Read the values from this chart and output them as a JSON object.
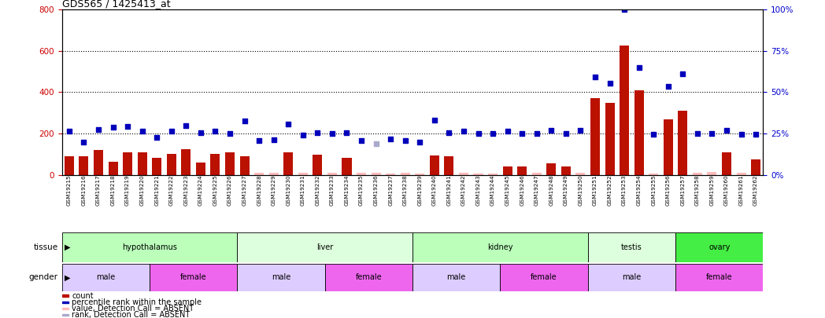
{
  "title": "GDS565 / 1425413_at",
  "samples": [
    "GSM19215",
    "GSM19216",
    "GSM19217",
    "GSM19218",
    "GSM19219",
    "GSM19220",
    "GSM19221",
    "GSM19222",
    "GSM19223",
    "GSM19224",
    "GSM19225",
    "GSM19226",
    "GSM19227",
    "GSM19228",
    "GSM19229",
    "GSM19230",
    "GSM19231",
    "GSM19232",
    "GSM19233",
    "GSM19234",
    "GSM19235",
    "GSM19236",
    "GSM19237",
    "GSM19238",
    "GSM19239",
    "GSM19240",
    "GSM19241",
    "GSM19242",
    "GSM19243",
    "GSM19244",
    "GSM19245",
    "GSM19246",
    "GSM19247",
    "GSM19248",
    "GSM19249",
    "GSM19250",
    "GSM19251",
    "GSM19252",
    "GSM19253",
    "GSM19254",
    "GSM19255",
    "GSM19256",
    "GSM19257",
    "GSM19258",
    "GSM19259",
    "GSM19260",
    "GSM19261",
    "GSM19262"
  ],
  "count": [
    90,
    92,
    120,
    62,
    110,
    110,
    82,
    100,
    125,
    60,
    100,
    110,
    92,
    12,
    10,
    110,
    10,
    98,
    12,
    82,
    12,
    10,
    8,
    10,
    8,
    95,
    90,
    10,
    8,
    8,
    40,
    42,
    10,
    55,
    40,
    10,
    370,
    350,
    625,
    410,
    8,
    270,
    310,
    10,
    15,
    110,
    12,
    75
  ],
  "count_absent": [
    false,
    false,
    false,
    false,
    false,
    false,
    false,
    false,
    false,
    false,
    false,
    false,
    false,
    true,
    true,
    false,
    true,
    false,
    true,
    false,
    true,
    true,
    true,
    true,
    true,
    false,
    false,
    true,
    true,
    true,
    false,
    false,
    true,
    false,
    false,
    true,
    false,
    false,
    false,
    false,
    true,
    false,
    false,
    true,
    true,
    false,
    true,
    false
  ],
  "rank": [
    210,
    160,
    220,
    230,
    235,
    210,
    180,
    212,
    240,
    205,
    210,
    200,
    260,
    165,
    170,
    245,
    192,
    205,
    200,
    205,
    165,
    150,
    175,
    165,
    160,
    265,
    205,
    210,
    200,
    200,
    210,
    200,
    200,
    215,
    200,
    215,
    475,
    445,
    800,
    520,
    195,
    430,
    490,
    200,
    200,
    215,
    195,
    195
  ],
  "rank_absent": [
    false,
    false,
    false,
    false,
    false,
    false,
    false,
    false,
    false,
    false,
    false,
    false,
    false,
    false,
    false,
    false,
    false,
    false,
    false,
    false,
    false,
    true,
    false,
    false,
    false,
    false,
    false,
    false,
    false,
    false,
    false,
    false,
    false,
    false,
    false,
    false,
    false,
    false,
    false,
    false,
    false,
    false,
    false,
    false,
    false,
    false,
    false,
    false
  ],
  "tissues": [
    {
      "name": "hypothalamus",
      "start": 0,
      "end": 12,
      "color": "#bbffbb"
    },
    {
      "name": "liver",
      "start": 12,
      "end": 24,
      "color": "#ddffdd"
    },
    {
      "name": "kidney",
      "start": 24,
      "end": 36,
      "color": "#bbffbb"
    },
    {
      "name": "testis",
      "start": 36,
      "end": 42,
      "color": "#ddffdd"
    },
    {
      "name": "ovary",
      "start": 42,
      "end": 48,
      "color": "#44ee44"
    }
  ],
  "genders": [
    {
      "name": "male",
      "start": 0,
      "end": 6,
      "color": "#ddccff"
    },
    {
      "name": "female",
      "start": 6,
      "end": 12,
      "color": "#ee66ee"
    },
    {
      "name": "male",
      "start": 12,
      "end": 18,
      "color": "#ddccff"
    },
    {
      "name": "female",
      "start": 18,
      "end": 24,
      "color": "#ee66ee"
    },
    {
      "name": "male",
      "start": 24,
      "end": 30,
      "color": "#ddccff"
    },
    {
      "name": "female",
      "start": 30,
      "end": 36,
      "color": "#ee66ee"
    },
    {
      "name": "male",
      "start": 36,
      "end": 42,
      "color": "#ddccff"
    },
    {
      "name": "female",
      "start": 42,
      "end": 48,
      "color": "#ee66ee"
    }
  ],
  "ylim_left": [
    0,
    800
  ],
  "ylim_right": [
    0,
    100
  ],
  "yticks_left": [
    0,
    200,
    400,
    600,
    800
  ],
  "yticks_right": [
    0,
    25,
    50,
    75,
    100
  ],
  "bar_color_present": "#bb1100",
  "bar_color_absent": "#ffbbbb",
  "dot_color_present": "#0000bb",
  "dot_color_absent": "#aaaacc",
  "background_color": "#ffffff"
}
